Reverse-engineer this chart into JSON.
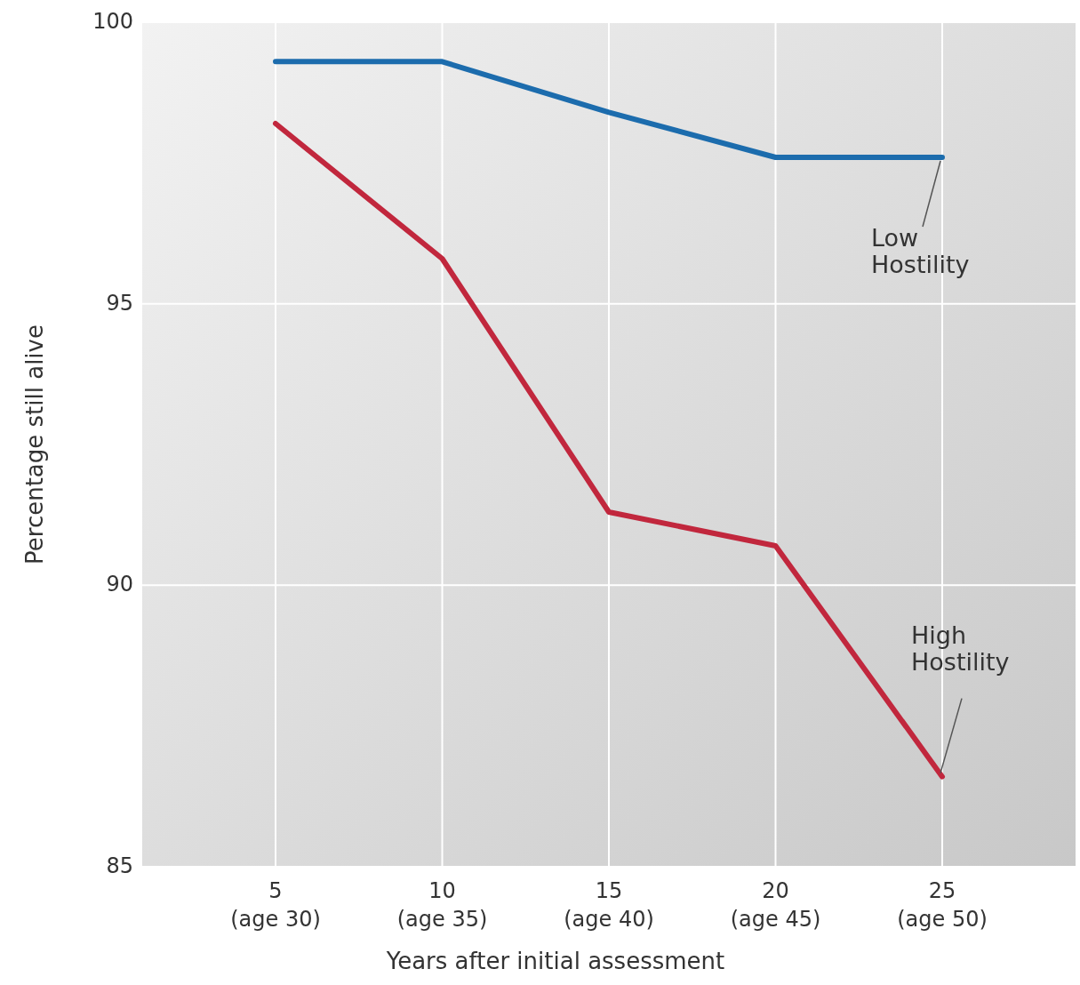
{
  "chart_data": {
    "type": "line",
    "xlabel": "Years after initial assessment",
    "ylabel": "Percentage still alive",
    "categories": [
      "5\n(age 30)",
      "10\n(age 35)",
      "15\n(age 40)",
      "20\n(age 45)",
      "25\n(age 50)"
    ],
    "series": [
      {
        "name": "Low\nHostility",
        "color": "#1c6cad",
        "values": [
          99.3,
          99.3,
          98.4,
          97.6,
          97.6
        ]
      },
      {
        "name": "High\nHostility",
        "color": "#c1273d",
        "values": [
          98.2,
          95.8,
          91.3,
          90.7,
          86.6
        ]
      }
    ],
    "ylim": [
      85,
      100
    ],
    "yticks": [
      85,
      90,
      95,
      100
    ],
    "grid": true,
    "marker": "none",
    "line_style": "solid"
  }
}
